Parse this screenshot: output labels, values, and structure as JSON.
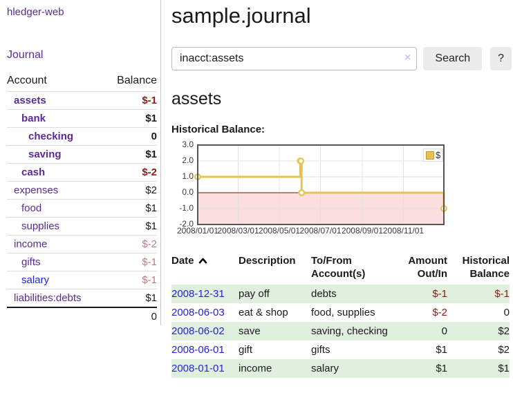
{
  "sidebar": {
    "brand": "hledger-web",
    "nav_journal": "Journal",
    "accounts_header": {
      "account": "Account",
      "balance": "Balance"
    },
    "accounts": [
      {
        "name": "assets",
        "level": 1,
        "bold": true,
        "link_color": "purple",
        "balance": "$-1",
        "balance_style": "neg-strong"
      },
      {
        "name": "bank",
        "level": 2,
        "bold": true,
        "link_color": "purple",
        "balance": "$1",
        "balance_style": "plain"
      },
      {
        "name": "checking",
        "level": 3,
        "bold": true,
        "link_color": "purple",
        "balance": "0",
        "balance_style": "plain"
      },
      {
        "name": "saving",
        "level": 3,
        "bold": true,
        "link_color": "purple",
        "balance": "$1",
        "balance_style": "plain"
      },
      {
        "name": "cash",
        "level": 2,
        "bold": true,
        "link_color": "purple",
        "balance": "$-2",
        "balance_style": "neg-strong"
      },
      {
        "name": "expenses",
        "level": 1,
        "bold": false,
        "link_color": "purple",
        "balance": "$2",
        "balance_style": "plain"
      },
      {
        "name": "food",
        "level": 2,
        "bold": false,
        "link_color": "purple",
        "balance": "$1",
        "balance_style": "plain"
      },
      {
        "name": "supplies",
        "level": 2,
        "bold": false,
        "link_color": "purple",
        "balance": "$1",
        "balance_style": "plain"
      },
      {
        "name": "income",
        "level": 1,
        "bold": false,
        "link_color": "purple",
        "balance": "$-2",
        "balance_style": "neg-soft"
      },
      {
        "name": "gifts",
        "level": 2,
        "bold": false,
        "link_color": "purple",
        "balance": "$-1",
        "balance_style": "neg-soft"
      },
      {
        "name": "salary",
        "level": 2,
        "bold": false,
        "link_color": "blue",
        "balance": "$-1",
        "balance_style": "neg-soft"
      },
      {
        "name": "liabilities:debts",
        "level": 1,
        "bold": false,
        "link_color": "purple",
        "balance": "$1",
        "balance_style": "plain"
      }
    ],
    "total": "0"
  },
  "header": {
    "title": "sample.journal"
  },
  "search": {
    "value": "inacct:assets",
    "clear_icon": "×",
    "button": "Search",
    "help": "?"
  },
  "account_page": {
    "title": "assets",
    "chart_label": "Historical Balance:"
  },
  "chart_data": {
    "type": "line",
    "step": true,
    "title": "Historical Balance",
    "xlabel": "",
    "ylabel": "",
    "xrange": [
      "2008-01-01",
      "2008-12-31"
    ],
    "ylim": [
      -2,
      3
    ],
    "grid": true,
    "legend_position": "top-right",
    "series": [
      {
        "name": "$",
        "color": "#e6c34f",
        "points": [
          [
            "2008-01-01",
            1
          ],
          [
            "2008-06-01",
            2
          ],
          [
            "2008-06-02",
            2
          ],
          [
            "2008-06-03",
            0
          ],
          [
            "2008-12-31",
            -1
          ]
        ]
      }
    ],
    "y_ticks": [
      {
        "v": 3,
        "label": "3.0"
      },
      {
        "v": 2,
        "label": "2.0"
      },
      {
        "v": 1,
        "label": "1.0"
      },
      {
        "v": 0,
        "label": "0.0"
      },
      {
        "v": -1,
        "label": "-1.0"
      },
      {
        "v": -2,
        "label": "-2.0"
      }
    ],
    "x_ticks": [
      {
        "date": "2008-01-01",
        "label": "2008/01/01"
      },
      {
        "date": "2008-03-01",
        "label": "2008/03/01"
      },
      {
        "date": "2008-05-01",
        "label": "2008/05/01"
      },
      {
        "date": "2008-07-01",
        "label": "2008/07/01"
      },
      {
        "date": "2008-09-01",
        "label": "2008/09/01"
      },
      {
        "date": "2008-11-01",
        "label": "2008/11/01"
      }
    ],
    "negative_fill": "#fbdfdf",
    "zero_line_color": "#8b0000",
    "grid_color": "#e2e2e2",
    "border_color": "#555555",
    "legend": "$"
  },
  "table": {
    "sort": "ascending",
    "headers": {
      "date": "Date",
      "description": "Description",
      "tofrom_line1": "To/From",
      "tofrom_line2": "Account(s)",
      "amount_line1": "Amount",
      "amount_line2": "Out/In",
      "balance_line1": "Historical",
      "balance_line2": "Balance"
    },
    "rows": [
      {
        "date": "2008-12-31",
        "description": "pay off",
        "accounts": "debts",
        "amount": "$-1",
        "amount_neg": true,
        "balance": "$-1",
        "balance_neg": true
      },
      {
        "date": "2008-06-03",
        "description": "eat & shop",
        "accounts": "food, supplies",
        "amount": "$-2",
        "amount_neg": true,
        "balance": "0",
        "balance_neg": false
      },
      {
        "date": "2008-06-02",
        "description": "save",
        "accounts": "saving, checking",
        "amount": "0",
        "amount_neg": false,
        "balance": "$2",
        "balance_neg": false
      },
      {
        "date": "2008-06-01",
        "description": "gift",
        "accounts": "gifts",
        "amount": "$1",
        "amount_neg": false,
        "balance": "$2",
        "balance_neg": false
      },
      {
        "date": "2008-01-01",
        "description": "income",
        "accounts": "salary",
        "amount": "$1",
        "amount_neg": false,
        "balance": "$1",
        "balance_neg": false
      }
    ]
  },
  "colors": {
    "link_purple": "#5a2b96",
    "link_blue": "#2323dc",
    "negative_strong": "#8e1a13",
    "negative_soft": "#c4797e",
    "row_shade_green": "#e1efdf",
    "chart_line_gold": "#e6c34f",
    "chart_negative_fill": "#fbdfdf",
    "chart_zero_line": "#8b0000"
  }
}
